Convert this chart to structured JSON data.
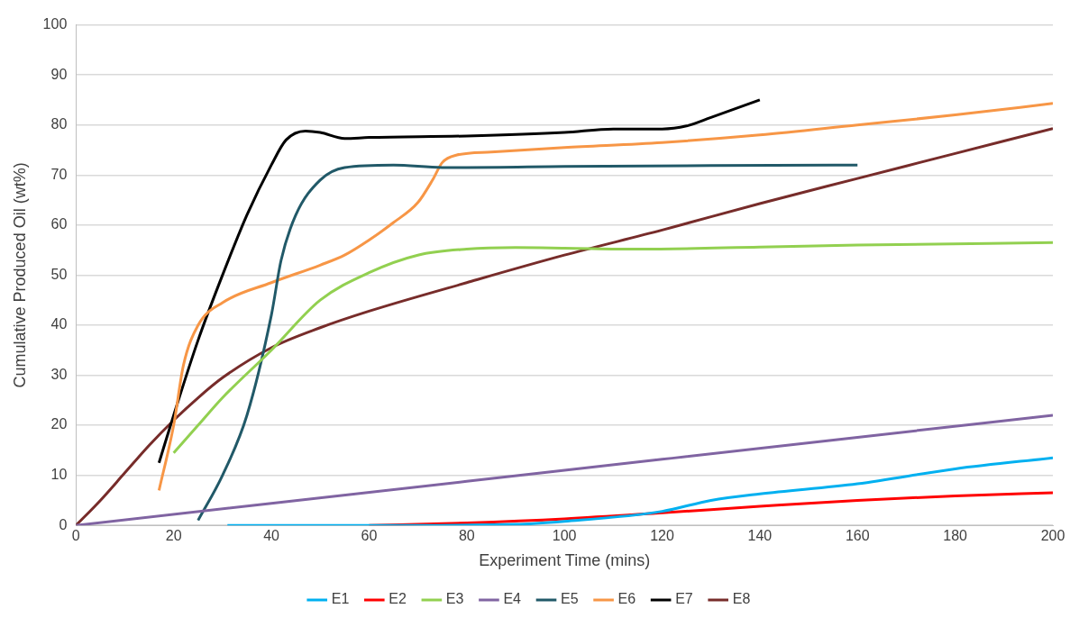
{
  "chart_data": {
    "type": "line",
    "xlabel": "Experiment Time (mins)",
    "ylabel": "Cumulative Produced Oil (wt%)",
    "xlim": [
      0,
      200
    ],
    "xticks": [
      0,
      20,
      40,
      60,
      80,
      100,
      120,
      140,
      160,
      180,
      200
    ],
    "ylim": [
      0,
      100
    ],
    "yticks": [
      0,
      10,
      20,
      30,
      40,
      50,
      60,
      70,
      80,
      90,
      100
    ],
    "grid": "y",
    "legend": "bottom",
    "marker": "none",
    "line_style": "solid",
    "series": [
      {
        "name": "E1",
        "color": "#00b0f0",
        "x": [
          31,
          60,
          90,
          100,
          120,
          130,
          140,
          160,
          180,
          200
        ],
        "values": [
          0,
          0,
          0.2,
          0.8,
          2.8,
          5,
          6.3,
          8.3,
          11.3,
          13.5
        ]
      },
      {
        "name": "E2",
        "color": "#ff0000",
        "x": [
          60,
          80,
          100,
          120,
          140,
          160,
          180,
          200
        ],
        "values": [
          0,
          0.5,
          1.3,
          2.5,
          3.8,
          5,
          5.9,
          6.5
        ]
      },
      {
        "name": "E3",
        "color": "#92d050",
        "x": [
          20,
          25,
          30,
          40,
          50,
          60,
          70,
          80,
          90,
          100,
          115,
          140,
          160,
          200
        ],
        "values": [
          14.5,
          20,
          25.5,
          35,
          45,
          50.5,
          54,
          55.2,
          55.5,
          55.4,
          55.2,
          55.6,
          56,
          56.5
        ]
      },
      {
        "name": "E4",
        "color": "#8064a2",
        "x": [
          0,
          40,
          80,
          120,
          160,
          200
        ],
        "values": [
          0,
          4.4,
          8.8,
          13.2,
          17.6,
          22
        ]
      },
      {
        "name": "E5",
        "color": "#215968",
        "x": [
          25,
          30,
          35,
          40,
          42,
          45,
          50,
          55,
          65,
          75,
          80,
          100,
          130,
          160
        ],
        "values": [
          1,
          10,
          22,
          42,
          53,
          62,
          69,
          71.5,
          72,
          71.5,
          71.5,
          71.7,
          71.9,
          72
        ]
      },
      {
        "name": "E6",
        "color": "#f79646",
        "x": [
          17,
          20,
          22,
          25,
          30,
          40,
          50,
          55,
          60,
          65,
          70,
          73,
          75,
          78,
          85,
          100,
          120,
          140,
          160,
          180,
          200
        ],
        "values": [
          7,
          20,
          32,
          40,
          44.5,
          48.5,
          52,
          54,
          57,
          60.5,
          64.5,
          69,
          72.5,
          74,
          74.6,
          75.5,
          76.5,
          78,
          80,
          82,
          84.3
        ]
      },
      {
        "name": "E7",
        "color": "#000000",
        "x": [
          17,
          20,
          25,
          30,
          35,
          40,
          43,
          47,
          50,
          55,
          60,
          80,
          100,
          110,
          120,
          125,
          130,
          140
        ],
        "values": [
          12.5,
          22,
          37,
          50,
          62,
          72,
          77,
          78.8,
          78.5,
          77.3,
          77.5,
          77.8,
          78.5,
          79.2,
          79.2,
          79.8,
          81.5,
          85
        ]
      },
      {
        "name": "E8",
        "color": "#772c2a",
        "x": [
          0,
          5,
          10,
          15,
          20,
          25,
          30,
          40,
          50,
          60,
          80,
          100,
          120,
          140,
          160,
          180,
          200
        ],
        "values": [
          0,
          5,
          10.5,
          16,
          21,
          25.5,
          29.5,
          35.5,
          39.5,
          42.8,
          48.5,
          54,
          59,
          64.3,
          69.3,
          74.3,
          79.3
        ]
      }
    ]
  }
}
